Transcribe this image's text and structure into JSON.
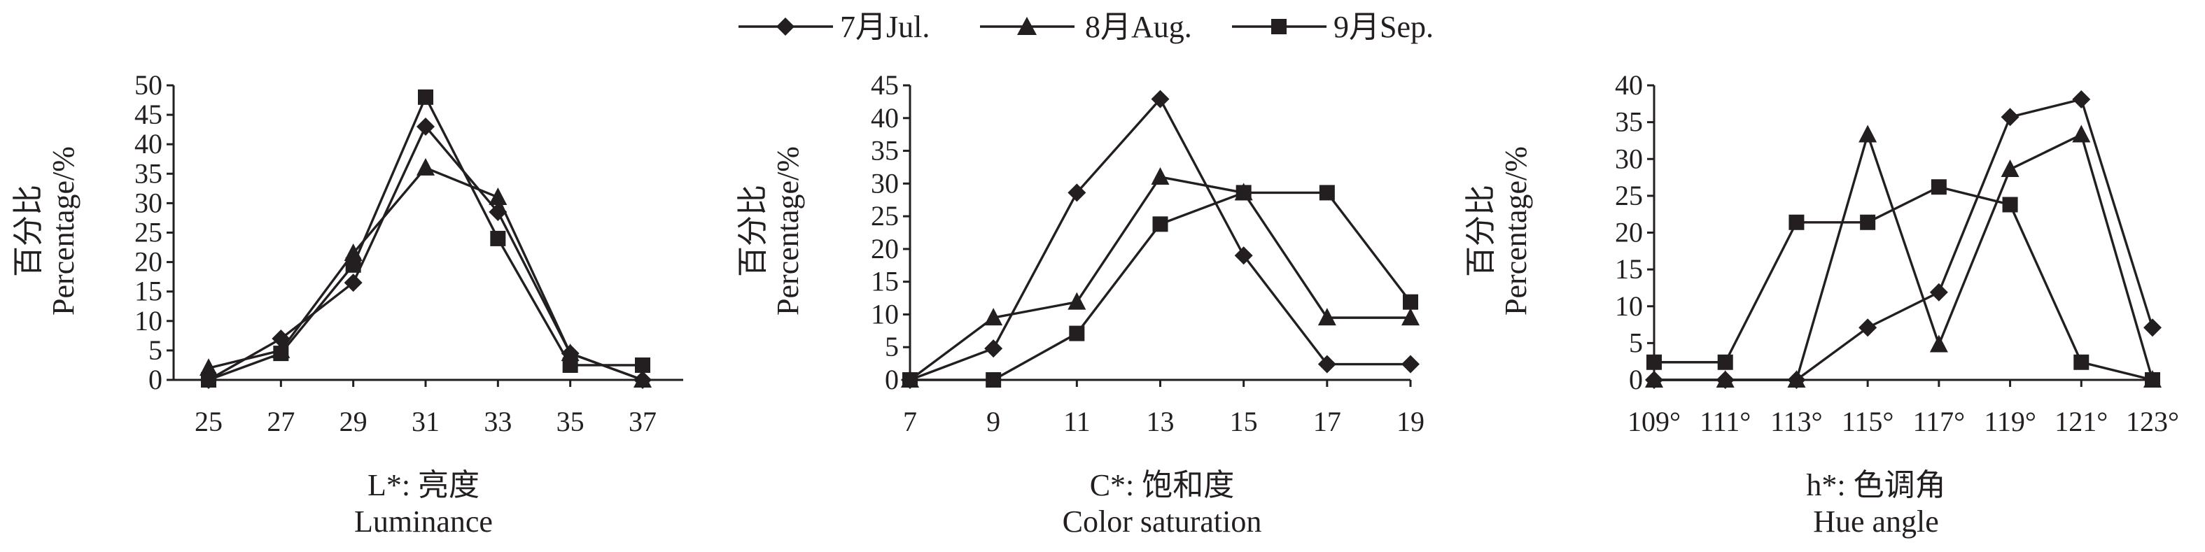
{
  "legend": [
    {
      "label": "7月Jul.",
      "marker": "diamond"
    },
    {
      "label": "8月Aug.",
      "marker": "triangle"
    },
    {
      "label": "9月Sep.",
      "marker": "square"
    }
  ],
  "colors": {
    "ink": "#231f20",
    "background": "#ffffff"
  },
  "chart_data": [
    {
      "type": "line",
      "ylabel_cn": "百分比",
      "ylabel_en": "Percentage/%",
      "xlabel_cn": "L*: 亮度",
      "xlabel_en": "Luminance",
      "categories": [
        "25",
        "27",
        "29",
        "31",
        "33",
        "35",
        "37"
      ],
      "ylim": [
        0,
        50
      ],
      "yticks": [
        0,
        5,
        10,
        15,
        20,
        25,
        30,
        35,
        40,
        45,
        50
      ],
      "series": [
        {
          "name": "7月Jul.",
          "marker": "diamond",
          "values": [
            0,
            7,
            16.5,
            43,
            28.5,
            4.5,
            0
          ]
        },
        {
          "name": "8月Aug.",
          "marker": "triangle",
          "values": [
            2,
            5,
            21.5,
            36,
            31,
            4.5,
            0
          ]
        },
        {
          "name": "9月Sep.",
          "marker": "square",
          "values": [
            0,
            4.5,
            19.5,
            48,
            24,
            2.5,
            2.5
          ]
        }
      ]
    },
    {
      "type": "line",
      "ylabel_cn": "百分比",
      "ylabel_en": "Percentage/%",
      "xlabel_cn": "C*: 饱和度",
      "xlabel_en": "Color saturation",
      "categories": [
        "7",
        "9",
        "11",
        "13",
        "15",
        "17",
        "19"
      ],
      "ylim": [
        0,
        45
      ],
      "yticks": [
        0,
        5,
        10,
        15,
        20,
        25,
        30,
        35,
        40,
        45
      ],
      "series": [
        {
          "name": "7月Jul.",
          "marker": "diamond",
          "values": [
            0,
            4.8,
            28.6,
            42.9,
            19,
            2.4,
            2.4
          ]
        },
        {
          "name": "8月Aug.",
          "marker": "triangle",
          "values": [
            0,
            9.5,
            11.9,
            31,
            28.6,
            9.5,
            9.5
          ]
        },
        {
          "name": "9月Sep.",
          "marker": "square",
          "values": [
            0,
            0,
            7.1,
            23.8,
            28.6,
            28.6,
            11.9
          ]
        }
      ]
    },
    {
      "type": "line",
      "ylabel_cn": "百分比",
      "ylabel_en": "Percentage/%",
      "xlabel_cn": "h*: 色调角",
      "xlabel_en": "Hue angle",
      "categories": [
        "109°",
        "111°",
        "113°",
        "115°",
        "117°",
        "119°",
        "121°",
        "123°"
      ],
      "ylim": [
        0,
        40
      ],
      "yticks": [
        0,
        5,
        10,
        15,
        20,
        25,
        30,
        35,
        40
      ],
      "series": [
        {
          "name": "7月Jul.",
          "marker": "diamond",
          "values": [
            0,
            0,
            0,
            7.1,
            11.9,
            35.7,
            38.1,
            7.1
          ]
        },
        {
          "name": "8月Aug.",
          "marker": "triangle",
          "values": [
            0,
            0,
            0,
            33.3,
            4.8,
            28.6,
            33.3,
            0
          ]
        },
        {
          "name": "9月Sep.",
          "marker": "square",
          "values": [
            2.4,
            2.4,
            21.4,
            21.4,
            26.2,
            23.8,
            2.4,
            0
          ]
        }
      ]
    }
  ]
}
